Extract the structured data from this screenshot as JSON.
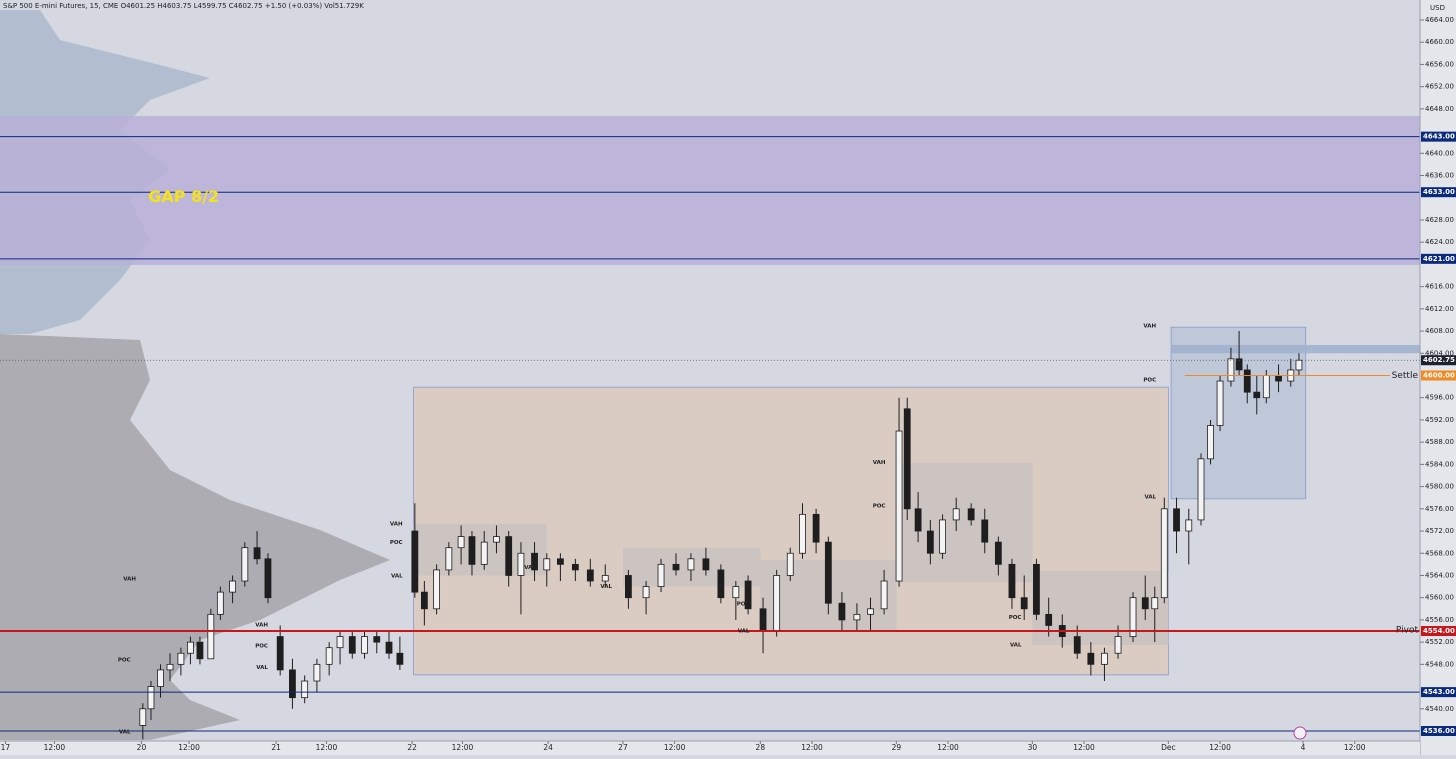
{
  "chart_data": {
    "type": "candlestick",
    "title": "S&P 500 E-mini Futures, 15, CME  O4601.25 H4603.75 L4599.75 C4602.75 +1.50 (+0.03%) Vol51.729K",
    "currency": "USD",
    "xlim": [
      -0.04,
      10.4
    ],
    "ylim": [
      4534.2,
      4667.6
    ],
    "xticks": [
      {
        "value": 0,
        "label": "17"
      },
      {
        "value": 0.36,
        "label": "12:00"
      },
      {
        "value": 1,
        "label": "20"
      },
      {
        "value": 1.35,
        "label": "12:00"
      },
      {
        "value": 1.99,
        "label": "21"
      },
      {
        "value": 2.36,
        "label": "12:00"
      },
      {
        "value": 2.99,
        "label": "22"
      },
      {
        "value": 3.36,
        "label": "12:00"
      },
      {
        "value": 3.99,
        "label": "24"
      },
      {
        "value": 4.54,
        "label": "27"
      },
      {
        "value": 4.92,
        "label": "12:00"
      },
      {
        "value": 5.55,
        "label": "28"
      },
      {
        "value": 5.93,
        "label": "12:00"
      },
      {
        "value": 6.55,
        "label": "29"
      },
      {
        "value": 6.93,
        "label": "12:00"
      },
      {
        "value": 7.55,
        "label": "30"
      },
      {
        "value": 7.93,
        "label": "12:00"
      },
      {
        "value": 8.55,
        "label": "Dec"
      },
      {
        "value": 8.93,
        "label": "12:00"
      },
      {
        "value": 9.54,
        "label": "4"
      },
      {
        "value": 9.92,
        "label": "12:00"
      }
    ],
    "yticks": [
      {
        "value": 4540,
        "label": "4540.00"
      },
      {
        "value": 4548,
        "label": "4548.00"
      },
      {
        "value": 4552,
        "label": "4552.00"
      },
      {
        "value": 4556,
        "label": "4556.00"
      },
      {
        "value": 4560,
        "label": "4560.00"
      },
      {
        "value": 4564,
        "label": "4564.00"
      },
      {
        "value": 4568,
        "label": "4568.00"
      },
      {
        "value": 4572,
        "label": "4572.00"
      },
      {
        "value": 4576,
        "label": "4576.00"
      },
      {
        "value": 4580,
        "label": "4580.00"
      },
      {
        "value": 4584,
        "label": "4584.00"
      },
      {
        "value": 4588,
        "label": "4588.00"
      },
      {
        "value": 4592,
        "label": "4592.00"
      },
      {
        "value": 4596,
        "label": "4596.00"
      },
      {
        "value": 4604,
        "label": "4604.00"
      },
      {
        "value": 4608,
        "label": "4608.00"
      },
      {
        "value": 4612,
        "label": "4612.00"
      },
      {
        "value": 4616,
        "label": "4616.00"
      },
      {
        "value": 4624,
        "label": "4624.00"
      },
      {
        "value": 4628,
        "label": "4628.00"
      },
      {
        "value": 4636,
        "label": "4636.00"
      },
      {
        "value": 4640,
        "label": "4640.00"
      },
      {
        "value": 4648,
        "label": "4648.00"
      },
      {
        "value": 4652,
        "label": "4652.00"
      },
      {
        "value": 4656,
        "label": "4656.00"
      },
      {
        "value": 4660,
        "label": "4660.00"
      },
      {
        "value": 4664,
        "label": "4664.00"
      }
    ],
    "up_color": "#f4f4f4",
    "down_color": "#1e1e1e",
    "candles": {
      "x": [
        1.01,
        1.07,
        1.14,
        1.21,
        1.29,
        1.36,
        1.43,
        1.51,
        1.58,
        1.67,
        1.76,
        1.85,
        1.93,
        2.02,
        2.11,
        2.2,
        2.29,
        2.38,
        2.46,
        2.55,
        2.64,
        2.73,
        2.82,
        2.9,
        3.01,
        3.08,
        3.17,
        3.26,
        3.35,
        3.43,
        3.52,
        3.61,
        3.7,
        3.79,
        3.89,
        3.98,
        4.08,
        4.19,
        4.3,
        4.41,
        4.58,
        4.71,
        4.82,
        4.93,
        5.04,
        5.15,
        5.26,
        5.37,
        5.46,
        5.57,
        5.67,
        5.77,
        5.86,
        5.96,
        6.05,
        6.15,
        6.26,
        6.36,
        6.46,
        6.57,
        6.63,
        6.71,
        6.8,
        6.89,
        6.99,
        7.1,
        7.2,
        7.3,
        7.4,
        7.49,
        7.58,
        7.67,
        7.77,
        7.88,
        7.98,
        8.08,
        8.18,
        8.29,
        8.38,
        8.45,
        8.52,
        8.61,
        8.7,
        8.79,
        8.86,
        8.93,
        9.01,
        9.07,
        9.13,
        9.2,
        9.27,
        9.36,
        9.45,
        9.51
      ],
      "open": [
        4537,
        4540,
        4544,
        4547,
        4548,
        4550,
        4552,
        4549,
        4557,
        4561,
        4563,
        4569,
        4567,
        4553,
        4547,
        4542,
        4545,
        4548,
        4551,
        4553,
        4550,
        4553,
        4552,
        4550,
        4572,
        4561,
        4558,
        4565,
        4569,
        4571,
        4566,
        4570,
        4571,
        4564,
        4568,
        4565,
        4567,
        4566,
        4565,
        4563,
        4564,
        4560,
        4562,
        4566,
        4565,
        4567,
        4565,
        4560,
        4563,
        4558,
        4554,
        4564,
        4568,
        4575,
        4570,
        4559,
        4556,
        4557,
        4558,
        4563,
        4594,
        4576,
        4572,
        4568,
        4574,
        4576,
        4574,
        4570,
        4566,
        4560,
        4566,
        4557,
        4555,
        4553,
        4550,
        4548,
        4550,
        4553,
        4560,
        4558,
        4560,
        4576,
        4572,
        4574,
        4585,
        4591,
        4599,
        4603,
        4601,
        4597,
        4596,
        4600,
        4599,
        4601
      ],
      "high": [
        4541,
        4545,
        4548,
        4550,
        4551,
        4553,
        4553,
        4558,
        4562,
        4564,
        4570,
        4572,
        4568,
        4555,
        4549,
        4546,
        4549,
        4552,
        4554,
        4554,
        4554,
        4554,
        4554,
        4553,
        4577,
        4563,
        4566,
        4570,
        4573,
        4572,
        4572,
        4573,
        4572,
        4570,
        4570,
        4568,
        4568,
        4567,
        4567,
        4566,
        4565,
        4563,
        4567,
        4568,
        4568,
        4569,
        4566,
        4563,
        4564,
        4560,
        4565,
        4569,
        4577,
        4576,
        4571,
        4561,
        4559,
        4560,
        4565,
        4596,
        4596,
        4579,
        4574,
        4575,
        4578,
        4577,
        4576,
        4571,
        4567,
        4564,
        4567,
        4560,
        4557,
        4555,
        4552,
        4551,
        4555,
        4561,
        4564,
        4562,
        4578,
        4578,
        4576,
        4586,
        4592,
        4600,
        4605,
        4608,
        4602,
        4600,
        4601,
        4602,
        4603,
        4604
      ],
      "low": [
        4534.5,
        4538,
        4542,
        4545,
        4546,
        4548,
        4548,
        4549,
        4556,
        4559,
        4562,
        4566,
        4559,
        4546,
        4540,
        4541,
        4543,
        4546,
        4548,
        4549,
        4549,
        4550,
        4549,
        4547,
        4560,
        4555,
        4557,
        4564,
        4566,
        4564,
        4565,
        4568,
        4562,
        4557,
        4563,
        4562,
        4563,
        4563,
        4562,
        4562,
        4558,
        4557,
        4561,
        4564,
        4563,
        4564,
        4559,
        4556,
        4557,
        4550,
        4553,
        4563,
        4567,
        4568,
        4557,
        4554,
        4554,
        4554,
        4557,
        4562,
        4574,
        4570,
        4566,
        4567,
        4572,
        4573,
        4568,
        4564,
        4558,
        4556,
        4556,
        4553,
        4551,
        4549,
        4546,
        4545,
        4549,
        4552,
        4556,
        4552,
        4559,
        4568,
        4566,
        4573,
        4584,
        4590,
        4598,
        4600,
        4595,
        4593,
        4595,
        4597,
        4598,
        4600
      ],
      "close": [
        4540,
        4544,
        4547,
        4548,
        4550,
        4552,
        4549,
        4557,
        4561,
        4563,
        4569,
        4567,
        4560,
        4547,
        4542,
        4545,
        4548,
        4551,
        4553,
        4550,
        4553,
        4552,
        4550,
        4548,
        4561,
        4558,
        4565,
        4569,
        4571,
        4566,
        4570,
        4571,
        4564,
        4568,
        4565,
        4567,
        4566,
        4565,
        4563,
        4564,
        4560,
        4562,
        4566,
        4565,
        4567,
        4565,
        4560,
        4562,
        4558,
        4554,
        4564,
        4568,
        4575,
        4570,
        4559,
        4556,
        4557,
        4558,
        4563,
        4590,
        4576,
        4572,
        4568,
        4574,
        4576,
        4574,
        4570,
        4566,
        4560,
        4558,
        4557,
        4555,
        4553,
        4550,
        4548,
        4550,
        4553,
        4560,
        4558,
        4560,
        4576,
        4572,
        4574,
        4585,
        4591,
        4599,
        4603,
        4601,
        4597,
        4596,
        4600,
        4599,
        4601,
        4602.75
      ]
    },
    "zones": [
      {
        "x": [
          -0.04,
          10.4
        ],
        "y": [
          4619.9,
          4646.7
        ],
        "color": "#b9b0d8"
      },
      {
        "x": [
          3.0,
          8.55
        ],
        "y": [
          4546.1,
          4597.9
        ],
        "color": "#dccbbf"
      },
      {
        "x": [
          3.0,
          3.98
        ],
        "y": [
          4564.0,
          4573.3
        ],
        "color": "#c9c2c0"
      },
      {
        "x": [
          4.54,
          5.55
        ],
        "y": [
          4562.0,
          4569.0
        ],
        "color": "#c9c2c0"
      },
      {
        "x": [
          5.55,
          6.55
        ],
        "y": [
          4554.0,
          4566.8
        ],
        "color": "#c9c2c0"
      },
      {
        "x": [
          6.55,
          7.55
        ],
        "y": [
          4562.8,
          4584.3
        ],
        "color": "#c9c2c0"
      },
      {
        "x": [
          7.55,
          8.55
        ],
        "y": [
          4551.5,
          4564.8
        ],
        "color": "#c9c2c0"
      },
      {
        "x": [
          8.57,
          9.56
        ],
        "y": [
          4577.8,
          4608.7
        ],
        "color": "#bcc6d8"
      },
      {
        "x": [
          8.57,
          10.4
        ],
        "y": [
          4604.0,
          4605.5
        ],
        "color": "#9fb0cc"
      }
    ],
    "levels": [
      {
        "value": 4643,
        "label": "4643.00",
        "color": "#0b2a7a"
      },
      {
        "value": 4633,
        "label": "4633.00",
        "color": "#0b2a7a"
      },
      {
        "value": 4621,
        "label": "4621.00",
        "color": "#0b2a7a"
      },
      {
        "value": 4554,
        "label": "4554.00",
        "color": "#c8161d",
        "name": "Pivot"
      },
      {
        "value": 4543,
        "label": "4543.00",
        "color": "#0b2a7a"
      },
      {
        "value": 4536,
        "label": "4536.00",
        "color": "#0b2a7a"
      }
    ],
    "current_price": {
      "value": 4602.75,
      "label": "4602.75",
      "color": "#1e2230"
    },
    "settle": {
      "value": 4600,
      "label": "4600.00",
      "name": "Settle",
      "color": "#f08a24",
      "x": 8.67
    },
    "annotations": [
      {
        "text": "GAP 8/2",
        "x": 1.05,
        "y": 4632,
        "color": "#f5e31a"
      },
      {
        "text": "VAH",
        "x": 0.96,
        "y": 4563.4
      },
      {
        "text": "POC",
        "x": 0.92,
        "y": 4548.8
      },
      {
        "text": "VAL",
        "x": 0.92,
        "y": 4535.8
      },
      {
        "text": "VAH",
        "x": 1.93,
        "y": 4555.1
      },
      {
        "text": "POC",
        "x": 1.93,
        "y": 4551.3
      },
      {
        "text": "VAL",
        "x": 1.93,
        "y": 4547.4
      },
      {
        "text": "VAH",
        "x": 2.92,
        "y": 4573.3
      },
      {
        "text": "POC",
        "x": 2.92,
        "y": 4569.9
      },
      {
        "text": "VAL",
        "x": 2.92,
        "y": 4563.9
      },
      {
        "text": "VAL",
        "x": 3.9,
        "y": 4565.4
      },
      {
        "text": "VAL",
        "x": 4.46,
        "y": 4562.0
      },
      {
        "text": "POC",
        "x": 5.47,
        "y": 4558.9
      },
      {
        "text": "VAL",
        "x": 5.47,
        "y": 4554.0
      },
      {
        "text": "VAH",
        "x": 6.47,
        "y": 4584.3
      },
      {
        "text": "POC",
        "x": 6.47,
        "y": 4576.5
      },
      {
        "text": "POC",
        "x": 7.47,
        "y": 4556.4
      },
      {
        "text": "VAL",
        "x": 7.47,
        "y": 4551.5
      },
      {
        "text": "VAH",
        "x": 8.46,
        "y": 4608.9
      },
      {
        "text": "POC",
        "x": 8.46,
        "y": 4599.2
      },
      {
        "text": "VAL",
        "x": 8.46,
        "y": 4578.1
      }
    ]
  }
}
